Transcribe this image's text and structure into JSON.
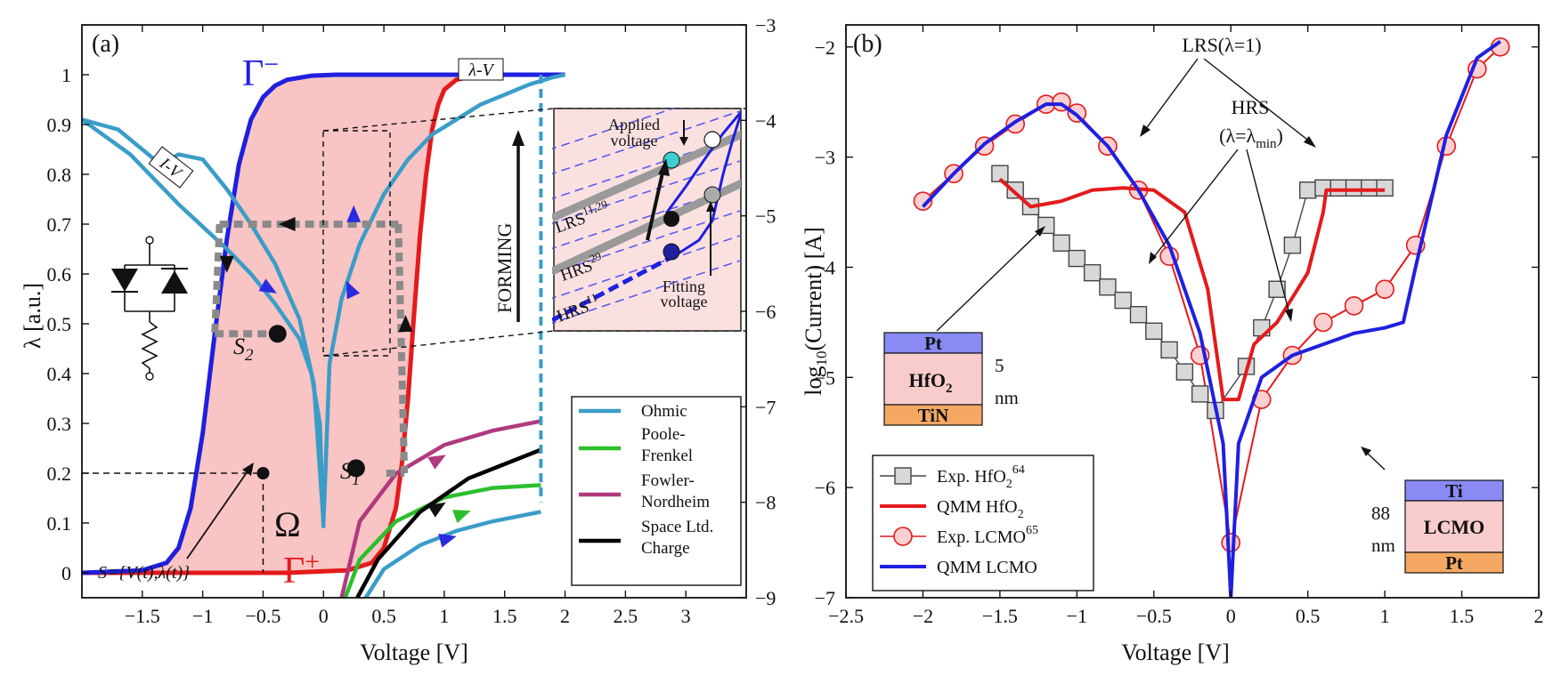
{
  "chart_data": [
    {
      "panel_label": "(a)",
      "type": "line",
      "xlabel": "Voltage [V]",
      "ylabel": "λ [a.u.]",
      "y2label": "log10(Current) [A]",
      "y2label_parts": {
        "pre": "log",
        "sub": "10",
        "post": "(Current) [A]"
      },
      "xlim": [
        -2.0,
        3.5
      ],
      "ylim": [
        -0.05,
        1.1
      ],
      "y2lim": [
        -9,
        -3
      ],
      "xticks": [
        -1.5,
        -1,
        -0.5,
        0,
        0.5,
        1,
        1.5,
        2,
        2.5,
        3
      ],
      "xtick_labels": [
        "−1.5",
        "−1",
        "−0.5",
        "0",
        "0.5",
        "1",
        "1.5",
        "2",
        "2.5",
        "3"
      ],
      "yticks": [
        0,
        0.1,
        0.2,
        0.3,
        0.4,
        0.5,
        0.6,
        0.7,
        0.8,
        0.9,
        1
      ],
      "ytick_labels": [
        "0",
        "0.1",
        "0.2",
        "0.3",
        "0.4",
        "0.5",
        "0.6",
        "0.7",
        "0.8",
        "0.9",
        "1"
      ],
      "y2ticks": [
        -9,
        -8,
        -7,
        -6,
        -5,
        -4,
        -3
      ],
      "y2tick_labels": [
        "−9",
        "−8",
        "−7",
        "−6",
        "−5",
        "−4",
        "−3"
      ],
      "boundaries": {
        "gamma_minus": {
          "name": "Γ⁻",
          "label": "Γ",
          "sup": "−",
          "color": "#1f1fe0",
          "x": [
            -2.0,
            -1.5,
            -1.3,
            -1.2,
            -1.1,
            -1.0,
            -0.9,
            -0.8,
            -0.7,
            -0.6,
            -0.5,
            -0.4,
            -0.3,
            -0.1,
            0.1,
            0.3,
            2.0
          ],
          "y": [
            0,
            0.005,
            0.02,
            0.05,
            0.13,
            0.28,
            0.48,
            0.67,
            0.82,
            0.91,
            0.955,
            0.978,
            0.99,
            0.998,
            1.0,
            1.0,
            1.0
          ]
        },
        "gamma_plus": {
          "name": "Γ⁺",
          "label": "Γ",
          "sup": "+",
          "color": "#e41a1c",
          "x": [
            -2.0,
            -0.3,
            0.2,
            0.4,
            0.5,
            0.6,
            0.65,
            0.7,
            0.75,
            0.8,
            0.85,
            0.9,
            0.95,
            1.0,
            1.1,
            1.3,
            2.0
          ],
          "y": [
            0,
            0,
            0.005,
            0.02,
            0.05,
            0.13,
            0.22,
            0.35,
            0.52,
            0.68,
            0.8,
            0.89,
            0.94,
            0.97,
            0.99,
            1.0,
            1.0
          ]
        },
        "omega_label": "Ω"
      },
      "iv_curves": [
        {
          "name": "I-V (ohmic branch to the left)",
          "color": "#3a9dc8",
          "x": [
            -2.0,
            -1.6,
            -1.4,
            -1.2,
            -1.0,
            -0.8,
            -0.6,
            -0.4,
            -0.2,
            -0.1,
            -0.03,
            0
          ],
          "y": [
            0.91,
            0.84,
            0.79,
            0.74,
            0.695,
            0.65,
            0.6,
            0.54,
            0.47,
            0.4,
            0.3,
            0.09
          ]
        },
        {
          "name": "I-V (loop)",
          "color": "#3a9dc8",
          "x": [
            -2.0,
            -1.7,
            -1.5,
            -1.35,
            -1.2,
            -1.0,
            -0.8,
            -0.6,
            -0.4,
            -0.2,
            -0.08,
            0
          ],
          "y": [
            0.91,
            0.89,
            0.85,
            0.82,
            0.84,
            0.83,
            0.77,
            0.7,
            0.62,
            0.51,
            0.38,
            0.1
          ]
        },
        {
          "name": "I-V (right branch)",
          "color": "#3a9dc8",
          "x": [
            0,
            0.05,
            0.15,
            0.3,
            0.5,
            0.7,
            0.9,
            1.1,
            1.3,
            1.5,
            1.7,
            1.9,
            2.0
          ],
          "y": [
            0.1,
            0.42,
            0.55,
            0.66,
            0.76,
            0.83,
            0.88,
            0.91,
            0.94,
            0.96,
            0.98,
            0.995,
            1.0
          ]
        }
      ],
      "iv_label": "I-V",
      "lambda_v_label": "λ-V",
      "state_points": [
        {
          "label": "S",
          "sub": "1",
          "V": 0.27,
          "lambda": 0.21
        },
        {
          "label": "S",
          "sub": "2",
          "V": -0.38,
          "lambda": 0.48
        },
        {
          "label": "",
          "sub": "",
          "V": -0.5,
          "lambda": 0.2
        }
      ],
      "state_definition": "S={V(t),λ(t)}",
      "conduction_models": [
        {
          "name": "Ohmic",
          "color": "#3a9dc8",
          "x": [
            0.35,
            0.5,
            0.8,
            1.1,
            1.4,
            1.8
          ],
          "log_current": [
            -9.0,
            -8.7,
            -8.45,
            -8.3,
            -8.2,
            -8.1
          ]
        },
        {
          "name": "Poole-Frenkel",
          "color": "#2cbf2c",
          "x": [
            0.18,
            0.3,
            0.6,
            1.0,
            1.4,
            1.8
          ],
          "log_current": [
            -9.0,
            -8.6,
            -8.2,
            -7.95,
            -7.85,
            -7.82
          ]
        },
        {
          "name": "Fowler-Nordheim",
          "color": "#b03a7e",
          "x": [
            0.15,
            0.3,
            0.6,
            1.0,
            1.4,
            1.8
          ],
          "log_current": [
            -9.0,
            -8.2,
            -7.7,
            -7.4,
            -7.25,
            -7.15
          ]
        },
        {
          "name": "Space Ltd. Charge",
          "color": "#000000",
          "x": [
            0.28,
            0.45,
            0.8,
            1.2,
            1.5,
            1.8
          ],
          "log_current": [
            -9.0,
            -8.6,
            -8.1,
            -7.75,
            -7.6,
            -7.45
          ]
        }
      ],
      "legend": [
        "Ohmic",
        "Poole-Frenkel",
        "Fowler-Nordheim",
        "Space Ltd. Charge"
      ],
      "legend_lines": [
        [
          "Ohmic"
        ],
        [
          "Poole-",
          "Frenkel"
        ],
        [
          "Fowler-",
          "Nordheim"
        ],
        [
          "Space Ltd.",
          "Charge"
        ]
      ],
      "inset": {
        "forming_label": "FORMING",
        "applied_voltage_label": "Applied voltage",
        "applied_lines": [
          "Applied",
          "voltage"
        ],
        "fitting_voltage_label": "Fitting voltage",
        "fitting_lines": [
          "Fitting",
          "voltage"
        ],
        "lrs_label": "LRS",
        "lrs_sup": "11,29",
        "hrs29_label": "HRS",
        "hrs29_sup": "29",
        "hrs11_label": "HRS",
        "hrs11_sup": "11"
      },
      "circuit_label": "memristor equivalent circuit"
    },
    {
      "panel_label": "(b)",
      "type": "line",
      "xlabel": "Voltage [V]",
      "ylabel": "",
      "xlim": [
        -2.5,
        2.0
      ],
      "ylim": [
        -7,
        -1.8
      ],
      "xticks": [
        -2.5,
        -2,
        -1.5,
        -1,
        -0.5,
        0,
        0.5,
        1,
        1.5,
        2
      ],
      "xtick_labels": [
        "−2.5",
        "−2",
        "−1.5",
        "−1",
        "−0.5",
        "0",
        "0.5",
        "1",
        "1.5",
        "2"
      ],
      "yticks": [
        -7,
        -6,
        -5,
        -4,
        -3,
        -2
      ],
      "ytick_labels": [
        "−7",
        "−6",
        "−5",
        "−4",
        "−3",
        "−2"
      ],
      "series": [
        {
          "name": "Exp. HfO2 64",
          "label": "Exp. HfO",
          "sub": "2",
          "sup": "64",
          "color": "#555555",
          "marker": "square",
          "x": [
            -1.5,
            -1.4,
            -1.3,
            -1.2,
            -1.1,
            -1.0,
            -0.9,
            -0.8,
            -0.7,
            -0.6,
            -0.5,
            -0.4,
            -0.3,
            -0.2,
            -0.1,
            0.1,
            0.2,
            0.3,
            0.4,
            0.5,
            0.6,
            0.7,
            0.8,
            0.9,
            1.0
          ],
          "y": [
            -3.15,
            -3.3,
            -3.45,
            -3.62,
            -3.78,
            -3.92,
            -4.05,
            -4.18,
            -4.3,
            -4.43,
            -4.58,
            -4.75,
            -4.95,
            -5.15,
            -5.3,
            -4.9,
            -4.55,
            -4.2,
            -3.8,
            -3.3,
            -3.28,
            -3.28,
            -3.28,
            -3.28,
            -3.28
          ]
        },
        {
          "name": "QMM HfO2",
          "label": "QMM HfO",
          "sub": "2",
          "sup": "",
          "color": "#e41a1c",
          "marker": "none",
          "x": [
            -1.5,
            -1.3,
            -1.1,
            -0.9,
            -0.7,
            -0.5,
            -0.3,
            -0.15,
            -0.05,
            0.05,
            0.15,
            0.3,
            0.5,
            0.6,
            0.62,
            0.7,
            1.0
          ],
          "y": [
            -3.2,
            -3.45,
            -3.4,
            -3.3,
            -3.28,
            -3.3,
            -3.5,
            -4.2,
            -5.2,
            -5.2,
            -4.7,
            -4.5,
            -4.05,
            -3.5,
            -3.3,
            -3.3,
            -3.3
          ]
        },
        {
          "name": "Exp. LCMO 65",
          "label": "Exp. LCMO",
          "sub": "",
          "sup": "65",
          "color": "#e41a1c",
          "marker": "circle",
          "x": [
            -2.0,
            -1.8,
            -1.6,
            -1.4,
            -1.2,
            -1.1,
            -1.0,
            -0.8,
            -0.6,
            -0.4,
            -0.2,
            0,
            0.2,
            0.4,
            0.6,
            0.8,
            1.0,
            1.2,
            1.4,
            1.6,
            1.75
          ],
          "y": [
            -3.4,
            -3.15,
            -2.9,
            -2.7,
            -2.52,
            -2.5,
            -2.6,
            -2.9,
            -3.3,
            -3.9,
            -4.8,
            -6.5,
            -5.2,
            -4.8,
            -4.5,
            -4.35,
            -4.2,
            -3.8,
            -2.9,
            -2.2,
            -2.0
          ]
        },
        {
          "name": "QMM LCMO",
          "label": "QMM LCMO",
          "sub": "",
          "sup": "",
          "color": "#1f1fe0",
          "marker": "none",
          "x": [
            -2.0,
            -1.8,
            -1.6,
            -1.4,
            -1.2,
            -1.1,
            -1.0,
            -0.8,
            -0.6,
            -0.4,
            -0.2,
            -0.05,
            0,
            0.05,
            0.2,
            0.4,
            0.6,
            0.8,
            1.0,
            1.12,
            1.2,
            1.4,
            1.6,
            1.75
          ],
          "y": [
            -3.45,
            -3.15,
            -2.88,
            -2.68,
            -2.52,
            -2.52,
            -2.62,
            -2.9,
            -3.3,
            -3.8,
            -4.6,
            -5.6,
            -7.0,
            -5.6,
            -5.0,
            -4.8,
            -4.7,
            -4.6,
            -4.55,
            -4.5,
            -4.0,
            -2.8,
            -2.1,
            -1.95
          ]
        }
      ],
      "annotations": {
        "lrs": "LRS(λ=1)",
        "hrs": "HRS",
        "hrs_sub_pre": "(λ=λ",
        "hrs_sub": "min",
        "hrs_sub_post": ")"
      },
      "devices": [
        {
          "name": "HfO2 device",
          "thickness": "5 nm",
          "thickness_lines": [
            "5",
            "nm"
          ],
          "layers": [
            "Pt",
            "HfO2",
            "TiN"
          ],
          "layer_display": [
            "Pt",
            "HfO",
            "TiN"
          ],
          "layer_sub": [
            "",
            "2",
            ""
          ]
        },
        {
          "name": "LCMO device",
          "thickness": "88 nm",
          "thickness_lines": [
            "88",
            "nm"
          ],
          "layers": [
            "Ti",
            "LCMO",
            "Pt"
          ],
          "layer_display": [
            "Ti",
            "LCMO",
            "Pt"
          ],
          "layer_sub": [
            "",
            "",
            ""
          ]
        }
      ],
      "layer_colors": {
        "top": "#8a8af5",
        "oxide": "#f9cccc",
        "bottom": "#f4a862"
      }
    }
  ]
}
